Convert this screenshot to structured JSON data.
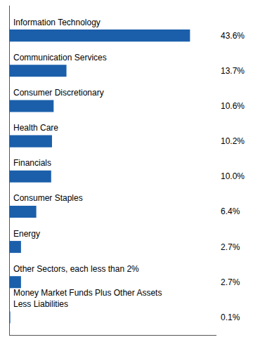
{
  "chart_data": {
    "type": "bar",
    "orientation": "horizontal",
    "categories": [
      "Information Technology",
      "Communication Services",
      "Consumer Discretionary",
      "Health Care",
      "Financials",
      "Consumer Staples",
      "Energy",
      "Other Sectors, each less than 2%",
      "Money Market Funds Plus Other Assets\nLess Liabilities"
    ],
    "values": [
      43.6,
      13.7,
      10.6,
      10.2,
      10.0,
      6.4,
      2.7,
      2.7,
      0.1
    ],
    "value_labels": [
      "43.6%",
      "13.7%",
      "10.6%",
      "10.2%",
      "10.0%",
      "6.4%",
      "2.7%",
      "2.7%",
      "0.1%"
    ],
    "data_labels": true,
    "color": "#1B5FAA",
    "xlim": [
      0,
      50
    ],
    "tick_labels": false,
    "grid": false
  }
}
